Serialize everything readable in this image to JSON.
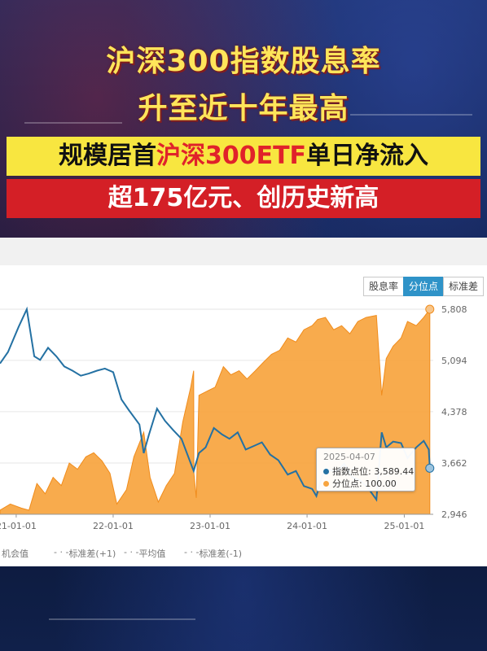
{
  "headline": {
    "line1": "沪深300指数股息率",
    "line2": "升至近十年最高",
    "band1_prefix": "规模居首",
    "band1_highlight": "沪深300ETF",
    "band1_suffix": "单日净流入",
    "band2": "超175亿元、创历史新高"
  },
  "tabs": [
    {
      "label": "股息率",
      "active": false
    },
    {
      "label": "分位点",
      "active": true
    },
    {
      "label": "标准差",
      "active": false
    }
  ],
  "legend": {
    "items": [
      "机会值",
      "标准差(+1)",
      "平均值",
      "标准差(-1)"
    ]
  },
  "tooltip": {
    "date": "2025-04-07",
    "row1_label": "指数点位:",
    "row1_value": "3,589.44",
    "row2_label": "分位点:",
    "row2_value": "100.00"
  },
  "colors": {
    "index_line": "#2471a3",
    "percentile_area": "#f7a43e",
    "grid": "#e6e6e6",
    "title_yellow": "#ffe55a",
    "band_red": "#d41f26",
    "band_yellow": "#f8e640"
  },
  "chart_data": {
    "type": "line",
    "x_ticks": [
      "21-01-01",
      "22-01-01",
      "23-01-01",
      "24-01-01",
      "25-01-01"
    ],
    "y_ticks": [
      5808,
      5094,
      4378,
      3662,
      2946
    ],
    "y_tick_labels": [
      "5,808",
      "5,094",
      "4,378",
      "3,662",
      "2,946"
    ],
    "ylim": [
      2946,
      5808
    ],
    "x_range": [
      "2020-11-01",
      "2025-04-20"
    ],
    "series": [
      {
        "name": "指数点位",
        "axis": "right",
        "points": [
          [
            "2020-11-01",
            5050
          ],
          [
            "2020-12-01",
            5211
          ],
          [
            "2021-01-10",
            5560
          ],
          [
            "2021-02-10",
            5808
          ],
          [
            "2021-03-10",
            5150
          ],
          [
            "2021-04-01",
            5100
          ],
          [
            "2021-05-01",
            5270
          ],
          [
            "2021-06-01",
            5150
          ],
          [
            "2021-07-01",
            5010
          ],
          [
            "2021-08-01",
            4950
          ],
          [
            "2021-09-01",
            4880
          ],
          [
            "2021-10-01",
            4910
          ],
          [
            "2021-11-01",
            4950
          ],
          [
            "2021-12-01",
            4980
          ],
          [
            "2022-01-01",
            4930
          ],
          [
            "2022-02-01",
            4550
          ],
          [
            "2022-03-01",
            4400
          ],
          [
            "2022-04-10",
            4200
          ],
          [
            "2022-04-26",
            3800
          ],
          [
            "2022-05-15",
            4050
          ],
          [
            "2022-06-15",
            4420
          ],
          [
            "2022-07-15",
            4250
          ],
          [
            "2022-08-15",
            4120
          ],
          [
            "2022-09-15",
            4000
          ],
          [
            "2022-10-31",
            3550
          ],
          [
            "2022-11-20",
            3800
          ],
          [
            "2022-12-15",
            3880
          ],
          [
            "2023-01-15",
            4150
          ],
          [
            "2023-02-15",
            4060
          ],
          [
            "2023-03-15",
            4000
          ],
          [
            "2023-04-15",
            4090
          ],
          [
            "2023-05-15",
            3850
          ],
          [
            "2023-06-15",
            3900
          ],
          [
            "2023-07-15",
            3950
          ],
          [
            "2023-08-15",
            3780
          ],
          [
            "2023-09-15",
            3700
          ],
          [
            "2023-10-20",
            3500
          ],
          [
            "2023-11-20",
            3550
          ],
          [
            "2023-12-20",
            3340
          ],
          [
            "2024-01-20",
            3300
          ],
          [
            "2024-02-05",
            3200
          ],
          [
            "2024-02-28",
            3500
          ],
          [
            "2024-03-20",
            3570
          ],
          [
            "2024-04-20",
            3540
          ],
          [
            "2024-05-20",
            3650
          ],
          [
            "2024-06-20",
            3460
          ],
          [
            "2024-07-20",
            3420
          ],
          [
            "2024-08-20",
            3300
          ],
          [
            "2024-09-18",
            3150
          ],
          [
            "2024-10-08",
            4090
          ],
          [
            "2024-10-25",
            3880
          ],
          [
            "2024-11-20",
            3960
          ],
          [
            "2024-12-20",
            3940
          ],
          [
            "2025-01-13",
            3730
          ],
          [
            "2025-02-15",
            3880
          ],
          [
            "2025-03-15",
            3970
          ],
          [
            "2025-04-03",
            3850
          ],
          [
            "2025-04-07",
            3589.44
          ]
        ]
      },
      {
        "name": "分位点",
        "axis": "hidden-0-100",
        "points": [
          [
            "2020-11-01",
            2
          ],
          [
            "2020-12-10",
            5
          ],
          [
            "2021-01-20",
            3
          ],
          [
            "2021-02-18",
            2
          ],
          [
            "2021-03-20",
            15
          ],
          [
            "2021-04-20",
            10
          ],
          [
            "2021-05-20",
            18
          ],
          [
            "2021-06-20",
            14
          ],
          [
            "2021-07-20",
            25
          ],
          [
            "2021-08-20",
            22
          ],
          [
            "2021-09-20",
            28
          ],
          [
            "2021-10-20",
            30
          ],
          [
            "2021-11-20",
            26
          ],
          [
            "2021-12-20",
            20
          ],
          [
            "2022-01-15",
            5
          ],
          [
            "2022-02-20",
            12
          ],
          [
            "2022-03-20",
            28
          ],
          [
            "2022-04-26",
            40
          ],
          [
            "2022-05-20",
            18
          ],
          [
            "2022-06-20",
            6
          ],
          [
            "2022-07-20",
            14
          ],
          [
            "2022-08-20",
            20
          ],
          [
            "2022-09-20",
            45
          ],
          [
            "2022-10-20",
            62
          ],
          [
            "2022-10-31",
            70
          ],
          [
            "2022-11-01",
            20
          ],
          [
            "2022-11-10",
            8
          ],
          [
            "2022-11-20",
            58
          ],
          [
            "2022-12-20",
            60
          ],
          [
            "2023-01-20",
            62
          ],
          [
            "2023-02-20",
            72
          ],
          [
            "2023-03-20",
            68
          ],
          [
            "2023-04-20",
            70
          ],
          [
            "2023-05-20",
            66
          ],
          [
            "2023-06-20",
            70
          ],
          [
            "2023-07-20",
            74
          ],
          [
            "2023-08-20",
            78
          ],
          [
            "2023-09-20",
            80
          ],
          [
            "2023-10-20",
            86
          ],
          [
            "2023-11-20",
            84
          ],
          [
            "2023-12-20",
            90
          ],
          [
            "2024-01-20",
            92
          ],
          [
            "2024-02-10",
            95
          ],
          [
            "2024-03-10",
            96
          ],
          [
            "2024-04-10",
            90
          ],
          [
            "2024-05-10",
            92
          ],
          [
            "2024-06-10",
            88
          ],
          [
            "2024-07-10",
            94
          ],
          [
            "2024-08-10",
            96
          ],
          [
            "2024-09-18",
            97
          ],
          [
            "2024-10-08",
            58
          ],
          [
            "2024-10-25",
            76
          ],
          [
            "2024-11-20",
            82
          ],
          [
            "2024-12-20",
            86
          ],
          [
            "2025-01-13",
            94
          ],
          [
            "2025-02-15",
            92
          ],
          [
            "2025-03-15",
            96
          ],
          [
            "2025-04-07",
            100
          ]
        ]
      }
    ],
    "grid": true
  }
}
